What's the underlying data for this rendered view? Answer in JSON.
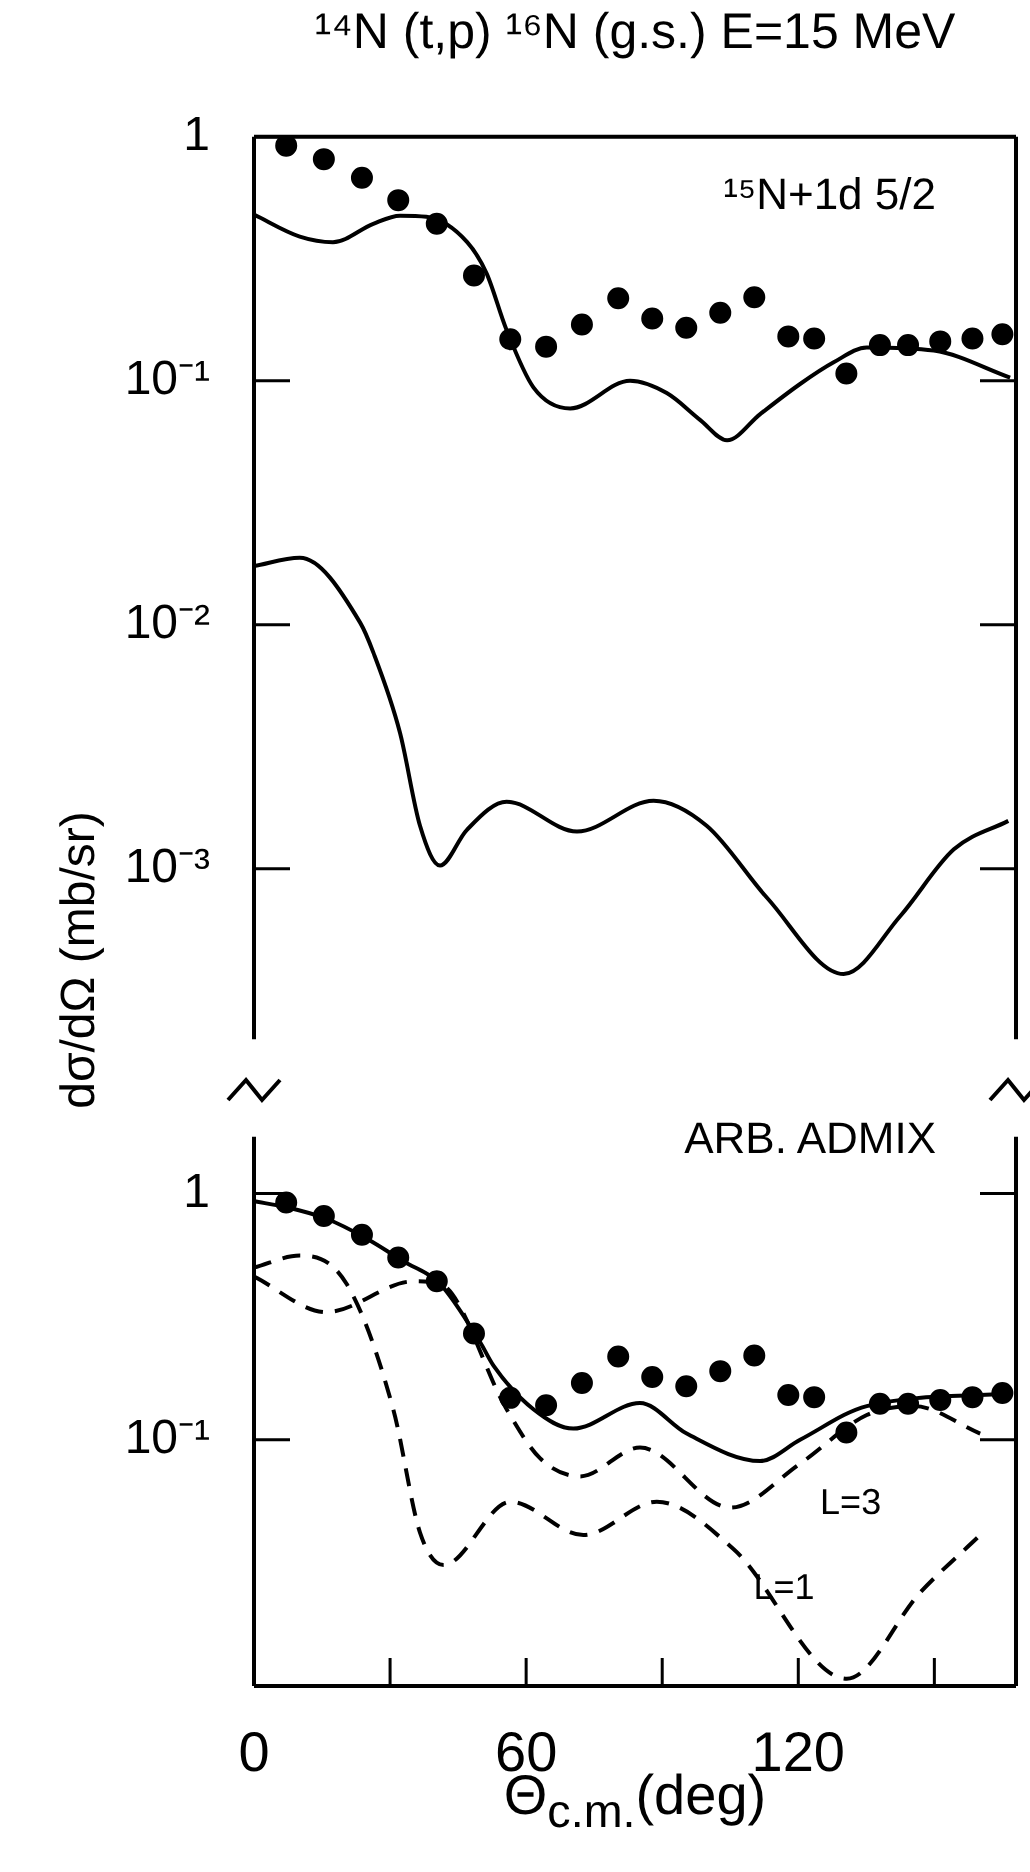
{
  "chart_data": [
    {
      "type": "line",
      "title": "¹⁴N (t,p) ¹⁶N (g.s.) E=15 MeV",
      "ylabel": "dσ/dΩ (mb/sr)",
      "annotations": [
        "¹⁵N+1d 5/2"
      ],
      "log": "y",
      "tick_labels": "y",
      "xlim": [
        0,
        168
      ],
      "ylim": [
        0.0002,
        1
      ],
      "yticks": [
        {
          "value": 1,
          "label": "1"
        },
        {
          "value": 0.1,
          "label": "10⁻¹"
        },
        {
          "value": 0.01,
          "label": "10⁻²"
        },
        {
          "value": 0.001,
          "label": "10⁻³"
        }
      ],
      "series": [
        {
          "type": "scatter",
          "marker": "circle",
          "color": "#000000",
          "x": [
            7.1,
            15.4,
            23.8,
            31.8,
            40.3,
            48.5,
            56.5,
            64.4,
            72.3,
            80.3,
            87.8,
            95.3,
            102.8,
            110.3,
            117.8,
            123.5,
            130.6,
            138,
            144.2,
            151.3,
            158.4,
            165
          ],
          "values": [
            0.92,
            0.81,
            0.68,
            0.55,
            0.44,
            0.27,
            0.148,
            0.138,
            0.17,
            0.218,
            0.18,
            0.165,
            0.19,
            0.22,
            0.152,
            0.149,
            0.107,
            0.14,
            0.14,
            0.145,
            0.149,
            0.155
          ]
        },
        {
          "type": "line",
          "line_style": "solid",
          "color": "#000000",
          "x": [
            0,
            10.1,
            17.4,
            26.3,
            32.2,
            38,
            47,
            51.3,
            55.6,
            61.6,
            69.7,
            82.9,
            91,
            98.4,
            104.3,
            111.6,
            120.4,
            127.8,
            135.1,
            149.9,
            166.7
          ],
          "values": [
            0.48,
            0.39,
            0.37,
            0.44,
            0.475,
            0.47,
            0.37,
            0.275,
            0.163,
            0.094,
            0.077,
            0.1,
            0.089,
            0.069,
            0.057,
            0.073,
            0.097,
            0.119,
            0.137,
            0.133,
            0.103
          ]
        },
        {
          "type": "line",
          "line_style": "solid",
          "color": "#000000",
          "x": [
            0,
            10.1,
            23.4,
            26.3,
            32.2,
            36.6,
            41,
            46.9,
            55.7,
            71.2,
            88.1,
            99.8,
            113.1,
            130,
            142.5,
            154.3,
            166.3
          ],
          "values": [
            0.0174,
            0.0188,
            0.0102,
            0.0077,
            0.0036,
            0.0015,
            0.00103,
            0.00144,
            0.00188,
            0.00142,
            0.0019,
            0.0015,
            0.00076,
            0.00037,
            0.00064,
            0.0012,
            0.00157
          ]
        }
      ]
    },
    {
      "type": "line",
      "xlabel": "Θ$_{c.m.}$(deg)",
      "annotations": [
        "ARB. ADMIX"
      ],
      "log": "y",
      "xlim": [
        0,
        168
      ],
      "ylim": [
        0.01,
        1.7
      ],
      "xticks": [
        0,
        {
          "value": 30,
          "label": null
        },
        60,
        {
          "value": 90,
          "label": null
        },
        120,
        {
          "value": 150,
          "label": null
        }
      ],
      "yticks": [
        {
          "value": 1,
          "label": "1"
        },
        {
          "value": 0.1,
          "label": "10⁻¹"
        }
      ],
      "series": [
        {
          "type": "scatter",
          "marker": "circle",
          "color": "#000000",
          "x": [
            7.1,
            15.4,
            23.8,
            31.8,
            40.3,
            48.5,
            56.5,
            64.4,
            72.3,
            80.3,
            87.8,
            95.3,
            102.8,
            110.3,
            117.8,
            123.5,
            130.6,
            138,
            144.2,
            151.3,
            158.4,
            165
          ],
          "values": [
            0.92,
            0.81,
            0.68,
            0.55,
            0.44,
            0.27,
            0.148,
            0.138,
            0.17,
            0.218,
            0.18,
            0.165,
            0.19,
            0.22,
            0.152,
            0.149,
            0.107,
            0.14,
            0.14,
            0.145,
            0.149,
            0.155
          ]
        },
        {
          "type": "line",
          "line_style": "solid",
          "color": "#000000",
          "x": [
            0,
            7.2,
            16,
            24.6,
            33,
            41,
            49.8,
            52.8,
            61.6,
            70.4,
            85.1,
            95.4,
            111.6,
            120.4,
            135.1,
            166.7
          ],
          "values": [
            0.93,
            0.88,
            0.79,
            0.66,
            0.53,
            0.43,
            0.25,
            0.2,
            0.133,
            0.111,
            0.141,
            0.106,
            0.082,
            0.1,
            0.137,
            0.154
          ]
        },
        {
          "type": "line",
          "name": "L=3",
          "line_style": "dashed",
          "color": "#000000",
          "x": [
            0,
            16,
            35.2,
            41,
            55.7,
            63.1,
            71.9,
            85.1,
            105,
            120.4,
            135.1,
            145.4,
            160.1
          ],
          "values": [
            0.46,
            0.33,
            0.44,
            0.43,
            0.133,
            0.084,
            0.071,
            0.093,
            0.053,
            0.08,
            0.126,
            0.137,
            0.106
          ]
        },
        {
          "type": "line",
          "name": "L=1",
          "line_style": "dashed",
          "color": "#000000",
          "x": [
            0,
            10.1,
            20.4,
            30.7,
            36.6,
            41.8,
            56.5,
            72.6,
            88.8,
            105.7,
            130.7,
            146.9,
            160.1
          ],
          "values": [
            0.5,
            0.56,
            0.43,
            0.133,
            0.042,
            0.031,
            0.056,
            0.041,
            0.056,
            0.036,
            0.0107,
            0.024,
            0.041
          ]
        }
      ]
    }
  ]
}
